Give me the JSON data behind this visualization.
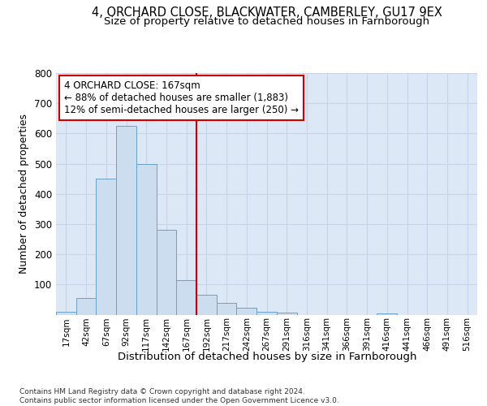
{
  "title_line1": "4, ORCHARD CLOSE, BLACKWATER, CAMBERLEY, GU17 9EX",
  "title_line2": "Size of property relative to detached houses in Farnborough",
  "xlabel": "Distribution of detached houses by size in Farnborough",
  "ylabel": "Number of detached properties",
  "footnote": "Contains HM Land Registry data © Crown copyright and database right 2024.\nContains public sector information licensed under the Open Government Licence v3.0.",
  "bin_labels": [
    "17sqm",
    "42sqm",
    "67sqm",
    "92sqm",
    "117sqm",
    "142sqm",
    "167sqm",
    "192sqm",
    "217sqm",
    "242sqm",
    "267sqm",
    "291sqm",
    "316sqm",
    "341sqm",
    "366sqm",
    "391sqm",
    "416sqm",
    "441sqm",
    "466sqm",
    "491sqm",
    "516sqm"
  ],
  "bar_values": [
    10,
    55,
    450,
    625,
    500,
    280,
    115,
    65,
    38,
    22,
    10,
    8,
    0,
    0,
    0,
    0,
    5,
    0,
    0,
    0,
    0
  ],
  "bar_color": "#ccddf0",
  "bar_edge_color": "#6aa0cc",
  "marker_index": 6,
  "marker_line_color": "#cc0000",
  "annotation_text": "4 ORCHARD CLOSE: 167sqm\n← 88% of detached houses are smaller (1,883)\n12% of semi-detached houses are larger (250) →",
  "annotation_box_color": "white",
  "annotation_box_edge_color": "#cc0000",
  "ylim": [
    0,
    800
  ],
  "yticks": [
    0,
    100,
    200,
    300,
    400,
    500,
    600,
    700,
    800
  ],
  "grid_color": "#c8d4e8",
  "background_color": "#ffffff",
  "axes_background_color": "#dce8f5"
}
